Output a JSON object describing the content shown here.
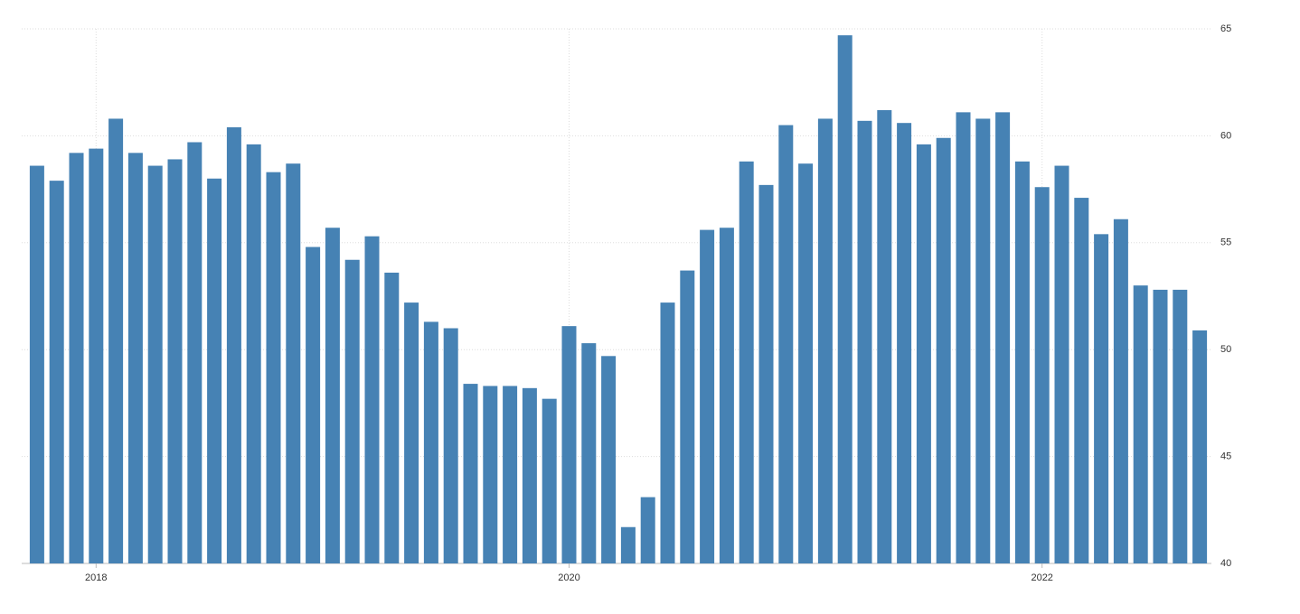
{
  "chart_data": {
    "type": "bar",
    "categories": [
      null,
      null,
      null,
      "2018",
      null,
      null,
      null,
      null,
      null,
      null,
      null,
      null,
      null,
      null,
      null,
      null,
      null,
      null,
      null,
      null,
      null,
      null,
      null,
      null,
      null,
      null,
      null,
      "2020",
      null,
      null,
      null,
      null,
      null,
      null,
      null,
      null,
      null,
      null,
      null,
      null,
      null,
      null,
      null,
      null,
      null,
      null,
      null,
      null,
      null,
      null,
      null,
      "2022",
      null,
      null,
      null,
      null,
      null,
      null,
      null,
      null
    ],
    "values": [
      58.6,
      57.9,
      59.2,
      59.4,
      60.8,
      59.2,
      58.6,
      58.9,
      59.7,
      58.0,
      60.4,
      59.6,
      58.3,
      58.7,
      54.8,
      55.7,
      54.2,
      55.3,
      53.6,
      52.2,
      51.3,
      51.0,
      48.4,
      48.3,
      48.3,
      48.2,
      47.7,
      51.1,
      50.3,
      49.7,
      41.7,
      43.1,
      52.2,
      53.7,
      55.6,
      55.7,
      58.8,
      57.7,
      60.5,
      58.7,
      60.8,
      64.7,
      60.7,
      61.2,
      60.6,
      59.6,
      59.9,
      61.1,
      60.8,
      61.1,
      58.8,
      57.6,
      58.6,
      57.1,
      55.4,
      56.1,
      53.0,
      52.8,
      52.8,
      50.9
    ],
    "color": "#4682b4",
    "ylim": [
      40,
      65
    ],
    "yticks": [
      40,
      45,
      50,
      55,
      60,
      65
    ],
    "grid": true
  }
}
